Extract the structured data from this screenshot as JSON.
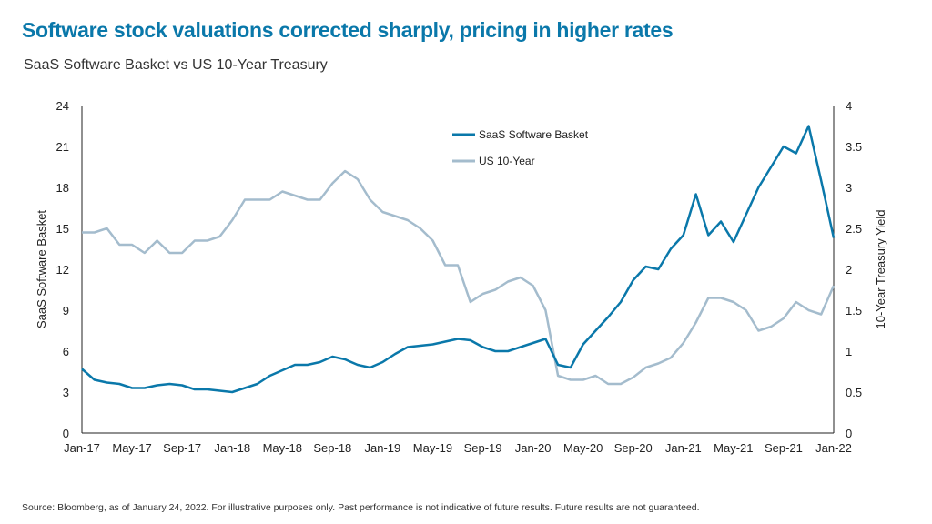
{
  "title": "Software stock valuations corrected sharply, pricing in higher rates",
  "subtitle": "SaaS Software Basket vs US 10-Year Treasury",
  "source": "Source: Bloomberg, as of January 24, 2022. For illustrative purposes only. Past performance is not indicative of future results. Future results are not guaranteed.",
  "colors": {
    "saas": "#0a78aa",
    "treasury": "#a4bccd"
  },
  "chart_data": {
    "type": "line",
    "ylabel": "SaaS Software Basket",
    "y2label": "10-Year Treasury Yield",
    "ylim": [
      0,
      24
    ],
    "y2lim": [
      0,
      4
    ],
    "yticks": [
      "0",
      "3",
      "6",
      "9",
      "12",
      "15",
      "18",
      "21",
      "24"
    ],
    "y2ticks": [
      "0",
      "0.5",
      "1",
      "1.5",
      "2",
      "2.5",
      "3",
      "3.5",
      "4"
    ],
    "xticks": [
      "Jan-17",
      "May-17",
      "Sep-17",
      "Jan-18",
      "May-18",
      "Sep-18",
      "Jan-19",
      "May-19",
      "Sep-19",
      "Jan-20",
      "May-20",
      "Sep-20",
      "Jan-21",
      "May-21",
      "Sep-21",
      "Jan-22"
    ],
    "legend": "top-center",
    "grid": false,
    "x": [
      "Jan-17",
      "Feb-17",
      "Mar-17",
      "Apr-17",
      "May-17",
      "Jun-17",
      "Jul-17",
      "Aug-17",
      "Sep-17",
      "Oct-17",
      "Nov-17",
      "Dec-17",
      "Jan-18",
      "Feb-18",
      "Mar-18",
      "Apr-18",
      "May-18",
      "Jun-18",
      "Jul-18",
      "Aug-18",
      "Sep-18",
      "Oct-18",
      "Nov-18",
      "Dec-18",
      "Jan-19",
      "Feb-19",
      "Mar-19",
      "Apr-19",
      "May-19",
      "Jun-19",
      "Jul-19",
      "Aug-19",
      "Sep-19",
      "Oct-19",
      "Nov-19",
      "Dec-19",
      "Jan-20",
      "Feb-20",
      "Mar-20",
      "Apr-20",
      "May-20",
      "Jun-20",
      "Jul-20",
      "Aug-20",
      "Sep-20",
      "Oct-20",
      "Nov-20",
      "Dec-20",
      "Jan-21",
      "Feb-21",
      "Mar-21",
      "Apr-21",
      "May-21",
      "Jun-21",
      "Jul-21",
      "Aug-21",
      "Sep-21",
      "Oct-21",
      "Nov-21",
      "Dec-21",
      "Jan-22"
    ],
    "series": [
      {
        "name": "SaaS Software Basket",
        "axis": "left",
        "values": [
          4.7,
          3.9,
          3.7,
          3.6,
          3.3,
          3.3,
          3.5,
          3.6,
          3.5,
          3.2,
          3.2,
          3.1,
          3.0,
          3.3,
          3.6,
          4.2,
          4.6,
          5.0,
          5.0,
          5.2,
          5.6,
          5.4,
          5.0,
          4.8,
          5.2,
          5.8,
          6.3,
          6.4,
          6.5,
          6.7,
          6.9,
          6.8,
          6.3,
          6.0,
          6.0,
          6.3,
          6.6,
          6.9,
          5.0,
          4.8,
          6.5,
          7.5,
          8.5,
          9.6,
          11.2,
          12.2,
          12.0,
          13.5,
          14.5,
          17.5,
          14.5,
          15.5,
          14.0,
          16.0,
          18.0,
          19.5,
          21.0,
          20.5,
          22.5,
          18.5,
          14.3
        ]
      },
      {
        "name": "US 10-Year",
        "axis": "right",
        "values": [
          2.45,
          2.45,
          2.5,
          2.3,
          2.3,
          2.2,
          2.35,
          2.2,
          2.2,
          2.35,
          2.35,
          2.4,
          2.6,
          2.85,
          2.85,
          2.85,
          2.95,
          2.9,
          2.85,
          2.85,
          3.05,
          3.2,
          3.1,
          2.85,
          2.7,
          2.65,
          2.6,
          2.5,
          2.35,
          2.05,
          2.05,
          1.6,
          1.7,
          1.75,
          1.85,
          1.9,
          1.8,
          1.5,
          0.7,
          0.65,
          0.65,
          0.7,
          0.6,
          0.6,
          0.68,
          0.8,
          0.85,
          0.92,
          1.1,
          1.35,
          1.65,
          1.65,
          1.6,
          1.5,
          1.25,
          1.3,
          1.4,
          1.6,
          1.5,
          1.45,
          1.8
        ]
      }
    ]
  }
}
